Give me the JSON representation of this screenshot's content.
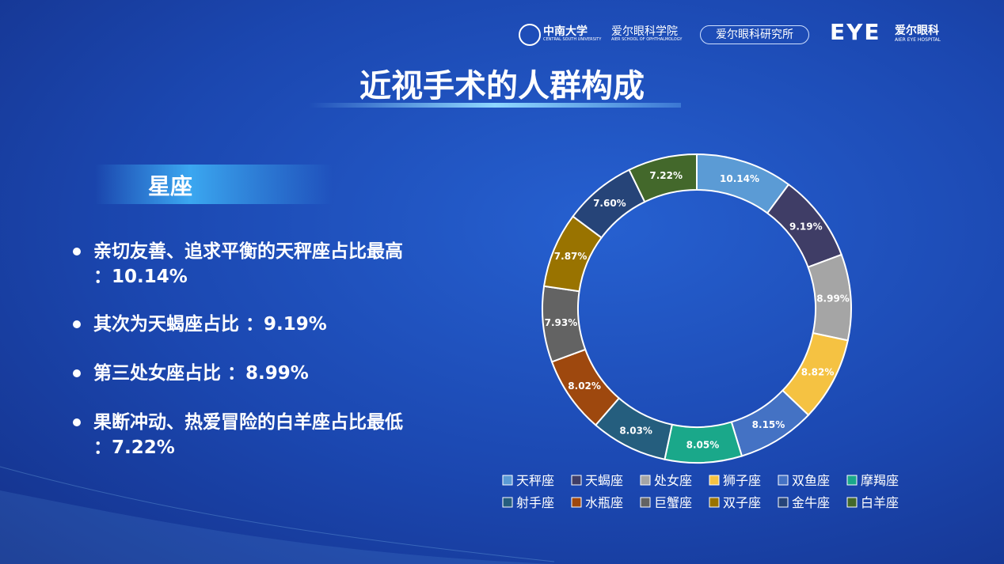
{
  "header": {
    "university": "中南大学",
    "university_en": "CENTRAL SOUTH UNIVERSITY",
    "school": "爱尔眼科学院",
    "school_en": "AIER SCHOOL OF OPHTHALMOLOGY",
    "institute": "爱尔眼科研究所",
    "brand": "EYE",
    "brand_cn": "爱尔眼科",
    "brand_en": "AIER EYE HOSPITAL"
  },
  "title": "近视手术的人群构成",
  "section": "星座",
  "bullets": [
    "亲切友善、追求平衡的天秤座占比最高 ：10.14%",
    "其次为天蝎座占比 ：9.19%",
    "第三处女座占比 ：8.99%",
    "果断冲动、热爱冒险的白羊座占比最低 ：7.22%"
  ],
  "chart_data": {
    "type": "donut",
    "categories": [
      "天秤座",
      "天蝎座",
      "处女座",
      "狮子座",
      "双鱼座",
      "摩羯座",
      "射手座",
      "水瓶座",
      "巨蟹座",
      "双子座",
      "金牛座",
      "白羊座"
    ],
    "values": [
      10.14,
      9.19,
      8.99,
      8.82,
      8.15,
      8.05,
      8.03,
      8.02,
      7.93,
      7.87,
      7.6,
      7.22
    ],
    "value_labels": [
      "10.14%",
      "9.19%",
      "8.99%",
      "8.82%",
      "8.15%",
      "8.05%",
      "8.03%",
      "8.02%",
      "7.93%",
      "7.87%",
      "7.60%",
      "7.22%"
    ],
    "colors": [
      "#5b9bd5",
      "#3f3d66",
      "#a5a5a5",
      "#f5c242",
      "#4472c4",
      "#1aa88a",
      "#255e7e",
      "#9e480e",
      "#636363",
      "#997300",
      "#264478",
      "#43682b"
    ],
    "legend": "bottom"
  }
}
